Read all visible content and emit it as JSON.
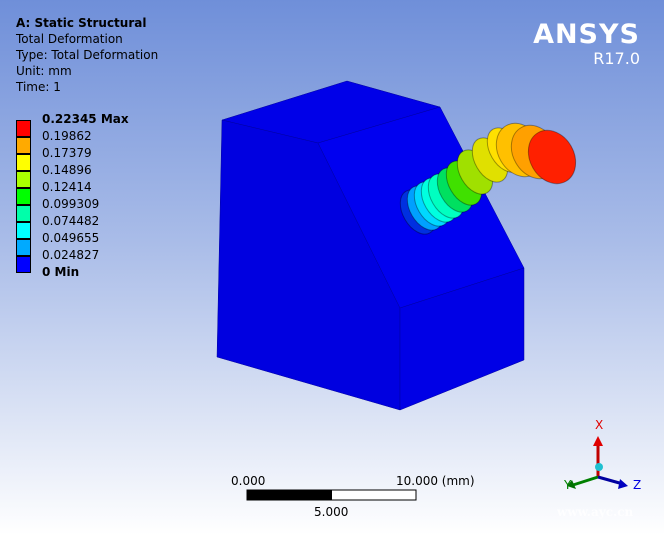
{
  "header": {
    "title": "A: Static Structural",
    "result": "Total Deformation",
    "type": "Type: Total Deformation",
    "unit": "Unit: mm",
    "time": "Time: 1"
  },
  "legend": {
    "items": [
      {
        "label": "0.22345 Max",
        "color": "#ff0000",
        "bold": true
      },
      {
        "label": "0.19862",
        "color": "#ffaa00"
      },
      {
        "label": "0.17379",
        "color": "#ffff00"
      },
      {
        "label": "0.14896",
        "color": "#aaff00"
      },
      {
        "label": "0.12414",
        "color": "#00ff00"
      },
      {
        "label": "0.099309",
        "color": "#00ffaa"
      },
      {
        "label": "0.074482",
        "color": "#00ffff"
      },
      {
        "label": "0.049655",
        "color": "#00aaff"
      },
      {
        "label": "0.024827",
        "color": "#0000ff"
      },
      {
        "label": "0 Min",
        "bold": true
      }
    ]
  },
  "brand": {
    "name": "ANSYS",
    "version": "R17.0"
  },
  "scale_bar": {
    "start": "0.000",
    "end": "10.000 (mm)",
    "mid": "5.000"
  },
  "triad": {
    "x": "X",
    "y": "Y",
    "z": "Z"
  },
  "watermark": "www.ayc.cn"
}
